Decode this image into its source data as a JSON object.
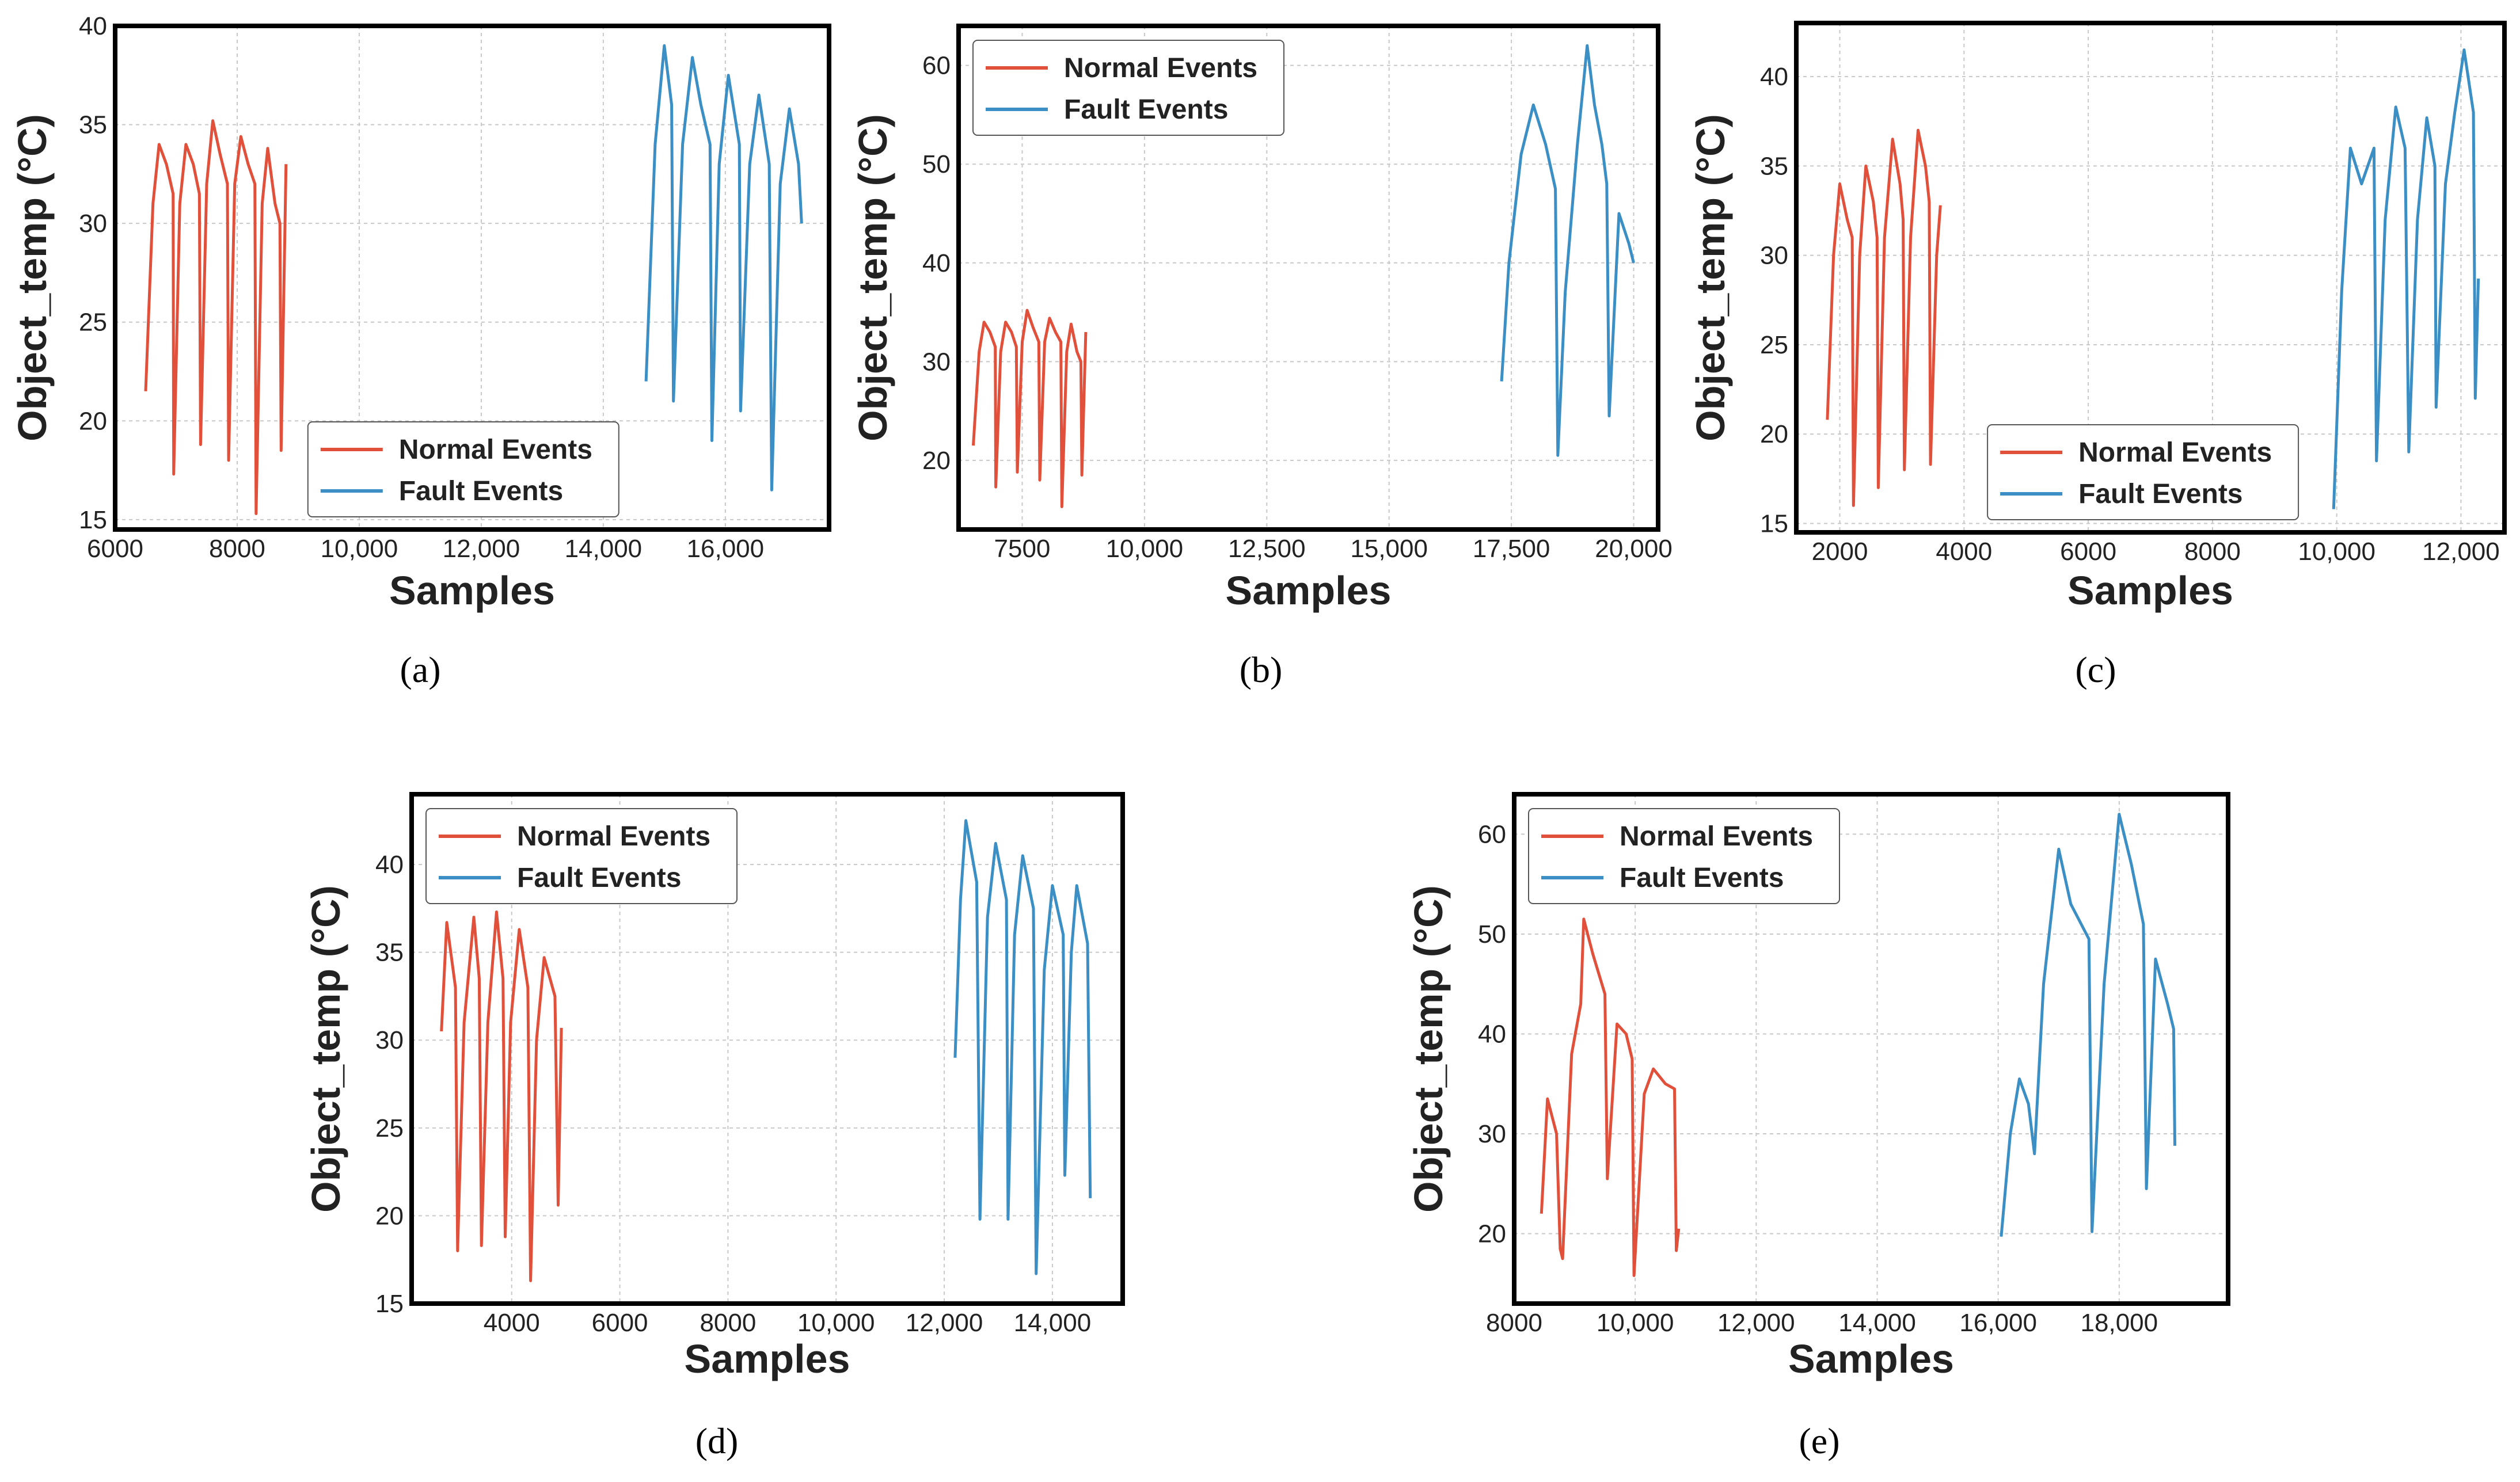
{
  "chart_data": [
    {
      "id": "a",
      "type": "line",
      "caption": "(a)",
      "xlabel": "Samples",
      "ylabel": "Object_temp (°C)",
      "xlim": [
        6000,
        17700
      ],
      "ylim": [
        14.5,
        40
      ],
      "xticks": [
        6000,
        8000,
        10000,
        12000,
        14000,
        16000
      ],
      "xtick_labels": [
        "6000",
        "8000",
        "10,000",
        "12,000",
        "14,000",
        "16,000"
      ],
      "yticks": [
        15,
        20,
        25,
        30,
        35,
        40
      ],
      "ytick_labels": [
        "15",
        "20",
        "25",
        "30",
        "35",
        "40"
      ],
      "legend_position": "lower-center",
      "series": [
        {
          "name": "Normal Events",
          "color": "#e0503a",
          "x": [
            6500,
            6620,
            6720,
            6840,
            6950,
            6960,
            7060,
            7160,
            7280,
            7380,
            7400,
            7500,
            7600,
            7720,
            7840,
            7860,
            7960,
            8060,
            8180,
            8290,
            8310,
            8410,
            8500,
            8620,
            8700,
            8720,
            8800
          ],
          "y": [
            21.5,
            31,
            34,
            33,
            31.5,
            17.3,
            31,
            34,
            33,
            31.5,
            18.8,
            32,
            35.2,
            33.5,
            32,
            18,
            32,
            34.4,
            33,
            32,
            15.3,
            31,
            33.8,
            31,
            30,
            18.5,
            33
          ]
        },
        {
          "name": "Fault Events",
          "color": "#3b8fc4",
          "x": [
            14700,
            14850,
            15000,
            15120,
            15150,
            15300,
            15460,
            15600,
            15750,
            15780,
            15900,
            16050,
            16230,
            16250,
            16400,
            16550,
            16720,
            16760,
            16900,
            17050,
            17200,
            17250
          ],
          "y": [
            22,
            34,
            39,
            36,
            21,
            34,
            38.4,
            36,
            34,
            19,
            33,
            37.5,
            34,
            20.5,
            33,
            36.5,
            33,
            16.5,
            32,
            35.8,
            33,
            30
          ]
        }
      ]
    },
    {
      "id": "b",
      "type": "line",
      "caption": "(b)",
      "xlabel": "Samples",
      "ylabel": "Object_temp (°C)",
      "xlim": [
        6200,
        20500
      ],
      "ylim": [
        13,
        64
      ],
      "xticks": [
        7500,
        10000,
        12500,
        15000,
        17500,
        20000
      ],
      "xtick_labels": [
        "7500",
        "10,000",
        "12,500",
        "15,000",
        "17,500",
        "20,000"
      ],
      "yticks": [
        20,
        30,
        40,
        50,
        60
      ],
      "ytick_labels": [
        "20",
        "30",
        "40",
        "50",
        "60"
      ],
      "legend_position": "upper-left",
      "series": [
        {
          "name": "Normal Events",
          "color": "#e0503a",
          "x": [
            6500,
            6620,
            6720,
            6840,
            6950,
            6960,
            7060,
            7160,
            7280,
            7380,
            7400,
            7500,
            7600,
            7720,
            7840,
            7860,
            7960,
            8060,
            8180,
            8290,
            8310,
            8410,
            8500,
            8620,
            8700,
            8720,
            8800
          ],
          "y": [
            21.5,
            31,
            34,
            33,
            31.5,
            17.3,
            31,
            34,
            33,
            31.5,
            18.8,
            32,
            35.2,
            33.5,
            32,
            18,
            32,
            34.4,
            33,
            32,
            15.3,
            31,
            33.8,
            31,
            30,
            18.5,
            33
          ]
        },
        {
          "name": "Fault Events",
          "color": "#3b8fc4",
          "x": [
            17300,
            17450,
            17700,
            17950,
            18200,
            18400,
            18450,
            18600,
            18850,
            19050,
            19200,
            19350,
            19450,
            19500,
            19700,
            19900,
            20000
          ],
          "y": [
            28,
            40,
            51,
            56,
            52,
            47.5,
            20.5,
            37,
            52,
            62,
            56,
            52,
            48,
            24.5,
            45,
            42,
            40
          ]
        }
      ]
    },
    {
      "id": "c",
      "type": "line",
      "caption": "(c)",
      "xlabel": "Samples",
      "ylabel": "Object_temp (°C)",
      "xlim": [
        1300,
        12700
      ],
      "ylim": [
        14.5,
        43
      ],
      "xticks": [
        2000,
        4000,
        6000,
        8000,
        10000,
        12000
      ],
      "xtick_labels": [
        "2000",
        "4000",
        "6000",
        "8000",
        "10,000",
        "12,000"
      ],
      "yticks": [
        15,
        20,
        25,
        30,
        35,
        40
      ],
      "ytick_labels": [
        "15",
        "20",
        "25",
        "30",
        "35",
        "40"
      ],
      "legend_position": "lower-center",
      "series": [
        {
          "name": "Normal Events",
          "color": "#e0503a",
          "x": [
            1800,
            1900,
            2000,
            2120,
            2200,
            2220,
            2320,
            2420,
            2540,
            2600,
            2620,
            2720,
            2850,
            2970,
            3020,
            3040,
            3140,
            3260,
            3380,
            3440,
            3460,
            3560,
            3620
          ],
          "y": [
            20.8,
            30,
            34,
            32,
            31,
            16,
            30,
            35,
            33,
            31,
            17,
            31,
            36.5,
            34,
            32,
            18,
            31,
            37,
            35,
            33,
            18.3,
            30,
            32.8
          ]
        },
        {
          "name": "Fault Events",
          "color": "#3b8fc4",
          "x": [
            9950,
            10080,
            10220,
            10400,
            10600,
            10640,
            10780,
            10950,
            11100,
            11160,
            11300,
            11450,
            11580,
            11600,
            11750,
            11900,
            12050,
            12200,
            12230,
            12280
          ],
          "y": [
            15.8,
            28,
            36,
            34,
            36,
            18.5,
            32,
            38.3,
            36,
            19,
            32,
            37.7,
            35,
            21.5,
            34,
            38,
            41.5,
            38,
            22,
            28.7
          ]
        }
      ]
    },
    {
      "id": "d",
      "type": "line",
      "caption": "(d)",
      "xlabel": "Samples",
      "ylabel": "Object_temp (°C)",
      "xlim": [
        2150,
        15300
      ],
      "ylim": [
        15,
        44
      ],
      "xticks": [
        4000,
        6000,
        8000,
        10000,
        12000,
        14000
      ],
      "xtick_labels": [
        "4000",
        "6000",
        "8000",
        "10,000",
        "12,000",
        "14,000"
      ],
      "yticks": [
        15,
        20,
        25,
        30,
        35,
        40
      ],
      "ytick_labels": [
        "15",
        "20",
        "25",
        "30",
        "35",
        "40"
      ],
      "legend_position": "upper-left",
      "series": [
        {
          "name": "Normal Events",
          "color": "#e0503a",
          "x": [
            2700,
            2800,
            2960,
            3000,
            3120,
            3300,
            3400,
            3440,
            3560,
            3720,
            3840,
            3880,
            3980,
            4140,
            4300,
            4350,
            4460,
            4600,
            4800,
            4860,
            4920
          ],
          "y": [
            30.5,
            36.7,
            33,
            18,
            31,
            37,
            33.5,
            18.3,
            31,
            37.3,
            33.5,
            18.8,
            31,
            36.3,
            33,
            16.3,
            30,
            34.7,
            32.5,
            20.6,
            30.7
          ]
        },
        {
          "name": "Fault Events",
          "color": "#3b8fc4",
          "x": [
            12200,
            12300,
            12400,
            12600,
            12660,
            12800,
            12950,
            13150,
            13180,
            13300,
            13450,
            13650,
            13700,
            13850,
            14000,
            14200,
            14230,
            14350,
            14450,
            14650,
            14700
          ],
          "y": [
            29,
            38,
            42.5,
            39,
            19.8,
            37,
            41.2,
            38,
            19.8,
            36,
            40.5,
            37.5,
            16.7,
            34,
            38.8,
            36,
            22.3,
            35,
            38.8,
            35.5,
            21
          ]
        }
      ]
    },
    {
      "id": "e",
      "type": "line",
      "caption": "(e)",
      "xlabel": "Samples",
      "ylabel": "Object_temp (°C)",
      "xlim": [
        8000,
        19800
      ],
      "ylim": [
        13,
        64
      ],
      "xticks": [
        8000,
        10000,
        12000,
        14000,
        16000,
        18000
      ],
      "xtick_labels": [
        "8000",
        "10,000",
        "12,000",
        "14,000",
        "16,000",
        "18,000"
      ],
      "yticks": [
        20,
        30,
        40,
        50,
        60
      ],
      "ytick_labels": [
        "20",
        "30",
        "40",
        "50",
        "60"
      ],
      "legend_position": "upper-left",
      "series": [
        {
          "name": "Normal Events",
          "color": "#e0503a",
          "x": [
            8450,
            8550,
            8700,
            8760,
            8800,
            8950,
            9100,
            9150,
            9300,
            9500,
            9540,
            9700,
            9850,
            9950,
            9980,
            10150,
            10300,
            10500,
            10650,
            10680,
            10720
          ],
          "y": [
            22,
            33.5,
            30,
            18.5,
            17.5,
            38,
            43,
            51.5,
            48,
            44,
            25.5,
            41,
            40,
            37.5,
            15.8,
            34,
            36.5,
            35,
            34.5,
            18.3,
            20.5
          ]
        },
        {
          "name": "Fault Events",
          "color": "#3b8fc4",
          "x": [
            16050,
            16200,
            16350,
            16500,
            16600,
            16750,
            17000,
            17200,
            17500,
            17550,
            17750,
            18000,
            18200,
            18400,
            18450,
            18600,
            18800,
            18900,
            18920
          ],
          "y": [
            19.7,
            30,
            35.5,
            33,
            28,
            45,
            58.5,
            53,
            49.5,
            20.2,
            45,
            62,
            57,
            51,
            24.5,
            47.5,
            43,
            40.5,
            28.8
          ]
        }
      ]
    }
  ]
}
